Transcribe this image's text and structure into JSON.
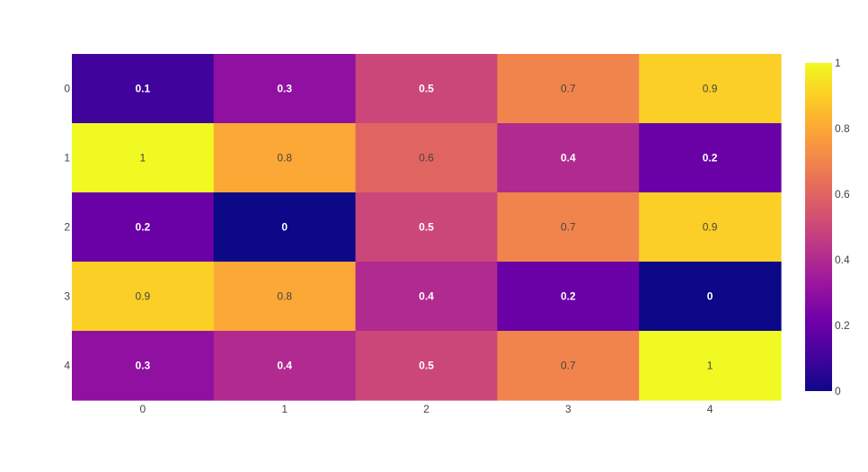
{
  "chart_data": {
    "type": "heatmap",
    "title": "",
    "xlabel": "",
    "ylabel": "",
    "x": [
      "0",
      "1",
      "2",
      "3",
      "4"
    ],
    "y": [
      "0",
      "1",
      "2",
      "3",
      "4"
    ],
    "z": [
      [
        0.1,
        0.3,
        0.5,
        0.7,
        0.9
      ],
      [
        1,
        0.8,
        0.6,
        0.4,
        0.2
      ],
      [
        0.2,
        0,
        0.5,
        0.7,
        0.9
      ],
      [
        0.9,
        0.8,
        0.4,
        0.2,
        0
      ],
      [
        0.3,
        0.4,
        0.5,
        0.7,
        1
      ]
    ],
    "text": [
      [
        "0.1",
        "0.3",
        "0.5",
        "0.7",
        "0.9"
      ],
      [
        "1",
        "0.8",
        "0.6",
        "0.4",
        "0.2"
      ],
      [
        "0.2",
        "0",
        "0.5",
        "0.7",
        "0.9"
      ],
      [
        "0.9",
        "0.8",
        "0.4",
        "0.2",
        "0"
      ],
      [
        "0.3",
        "0.4",
        "0.5",
        "0.7",
        "1"
      ]
    ],
    "y_axis_reversed": true,
    "zmin": 0,
    "zmax": 1,
    "colorscale": "plasma",
    "colorbar": {
      "ticks": [
        0,
        0.2,
        0.4,
        0.6,
        0.8,
        1
      ],
      "tick_labels": [
        "0",
        "0.2",
        "0.4",
        "0.6",
        "0.8",
        "1"
      ],
      "placement": "right"
    },
    "grid": false,
    "colors": {
      "tick_text": "#444444",
      "label_light": "#ffffff",
      "label_dark": "#444444",
      "colorscale_stops": [
        "#0d0887",
        "#46039f",
        "#7201a8",
        "#9c179e",
        "#bd3786",
        "#d8576b",
        "#ed7953",
        "#fb9f3a",
        "#fdca26",
        "#f0f921"
      ]
    }
  }
}
